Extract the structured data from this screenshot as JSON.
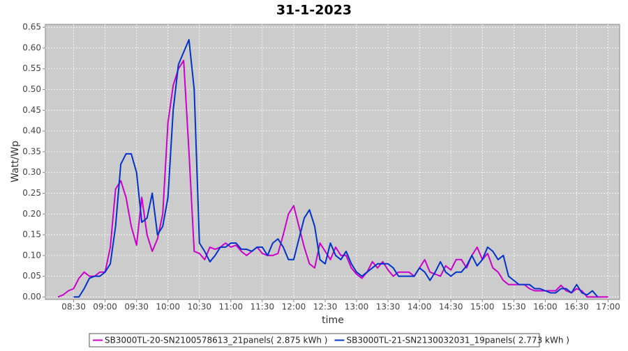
{
  "chart_data": {
    "type": "line",
    "title": "31-1-2023",
    "x_label": "time",
    "y_label": "Watt/Wp",
    "x": [
      495,
      500,
      505,
      510,
      515,
      520,
      525,
      530,
      535,
      540,
      545,
      550,
      555,
      560,
      565,
      570,
      575,
      580,
      585,
      590,
      595,
      600,
      605,
      610,
      615,
      620,
      625,
      630,
      635,
      640,
      645,
      650,
      655,
      660,
      665,
      670,
      675,
      680,
      685,
      690,
      695,
      700,
      705,
      710,
      715,
      720,
      725,
      730,
      735,
      740,
      745,
      750,
      755,
      760,
      765,
      770,
      775,
      780,
      785,
      790,
      795,
      800,
      805,
      810,
      815,
      820,
      825,
      830,
      835,
      840,
      845,
      850,
      855,
      860,
      865,
      870,
      875,
      880,
      885,
      890,
      895,
      900,
      905,
      910,
      915,
      920,
      925,
      930,
      935,
      940,
      945,
      950,
      955,
      960,
      965,
      970,
      975,
      980,
      985,
      990,
      995,
      1000,
      1005,
      1010,
      1015,
      1020
    ],
    "series": [
      {
        "name": "SB3000TL-20-SN2100578613_21panels( 2.875 kWh )",
        "color": "#cc00cc",
        "values": [
          0,
          0.005,
          0.015,
          0.02,
          0.045,
          0.06,
          0.05,
          0.05,
          0.06,
          0.06,
          0.12,
          0.26,
          0.28,
          0.24,
          0.17,
          0.125,
          0.24,
          0.15,
          0.11,
          0.14,
          0.2,
          0.42,
          0.51,
          0.55,
          0.57,
          0.35,
          0.11,
          0.105,
          0.09,
          0.12,
          0.115,
          0.12,
          0.13,
          0.12,
          0.125,
          0.11,
          0.1,
          0.11,
          0.12,
          0.105,
          0.1,
          0.1,
          0.105,
          0.15,
          0.2,
          0.22,
          0.17,
          0.12,
          0.08,
          0.07,
          0.13,
          0.11,
          0.09,
          0.12,
          0.1,
          0.1,
          0.07,
          0.055,
          0.045,
          0.06,
          0.085,
          0.07,
          0.085,
          0.065,
          0.05,
          0.06,
          0.06,
          0.06,
          0.05,
          0.07,
          0.09,
          0.06,
          0.055,
          0.05,
          0.075,
          0.065,
          0.09,
          0.09,
          0.07,
          0.1,
          0.12,
          0.09,
          0.105,
          0.07,
          0.06,
          0.04,
          0.03,
          0.03,
          0.03,
          0.03,
          0.02,
          0.015,
          0.015,
          0.015,
          0.015,
          0.015,
          0.028,
          0.015,
          0.01,
          0.02,
          0.015,
          0,
          0,
          0,
          0,
          0
        ]
      },
      {
        "name": "SB3000TL-21-SN2130032031_19panels( 2.773 kWh )",
        "color": "#0033cc",
        "values": [
          null,
          null,
          null,
          0,
          0,
          0.02,
          0.045,
          0.05,
          0.05,
          0.06,
          0.08,
          0.17,
          0.32,
          0.345,
          0.345,
          0.3,
          0.18,
          0.19,
          0.25,
          0.15,
          0.17,
          0.24,
          0.45,
          0.56,
          0.59,
          0.62,
          0.5,
          0.13,
          0.11,
          0.085,
          0.1,
          0.12,
          0.12,
          0.13,
          0.13,
          0.115,
          0.115,
          0.11,
          0.12,
          0.12,
          0.1,
          0.13,
          0.14,
          0.12,
          0.09,
          0.09,
          0.14,
          0.19,
          0.21,
          0.17,
          0.09,
          0.08,
          0.13,
          0.1,
          0.09,
          0.11,
          0.08,
          0.06,
          0.05,
          0.06,
          0.07,
          0.08,
          0.08,
          0.08,
          0.07,
          0.05,
          0.05,
          0.05,
          0.05,
          0.07,
          0.06,
          0.04,
          0.06,
          0.085,
          0.06,
          0.05,
          0.06,
          0.06,
          0.075,
          0.1,
          0.075,
          0.09,
          0.12,
          0.11,
          0.09,
          0.1,
          0.05,
          0.04,
          0.03,
          0.03,
          0.03,
          0.02,
          0.02,
          0.015,
          0.01,
          0.01,
          0.02,
          0.02,
          0.01,
          0.03,
          0.01,
          0.005,
          0.015,
          0,
          null,
          null
        ]
      }
    ],
    "xlim": [
      483,
      1031
    ],
    "xticks": [
      {
        "value": 510,
        "label": "08:30"
      },
      {
        "value": 540,
        "label": "09:00"
      },
      {
        "value": 570,
        "label": "09:30"
      },
      {
        "value": 600,
        "label": "10:00"
      },
      {
        "value": 630,
        "label": "10:30"
      },
      {
        "value": 660,
        "label": "11:00"
      },
      {
        "value": 690,
        "label": "11:30"
      },
      {
        "value": 720,
        "label": "12:00"
      },
      {
        "value": 750,
        "label": "12:30"
      },
      {
        "value": 780,
        "label": "13:00"
      },
      {
        "value": 810,
        "label": "13:30"
      },
      {
        "value": 840,
        "label": "14:00"
      },
      {
        "value": 870,
        "label": "14:30"
      },
      {
        "value": 900,
        "label": "15:00"
      },
      {
        "value": 930,
        "label": "15:30"
      },
      {
        "value": 960,
        "label": "16:00"
      },
      {
        "value": 990,
        "label": "16:30"
      },
      {
        "value": 1020,
        "label": "17:00"
      }
    ],
    "ylim": [
      -0.006,
      0.657
    ],
    "yticks": [
      {
        "value": 0,
        "label": "0.00"
      },
      0.05,
      {
        "value": 0.1,
        "label": "0.10"
      },
      0.15,
      {
        "value": 0.2,
        "label": "0.20"
      },
      0.25,
      {
        "value": 0.3,
        "label": "0.30"
      },
      0.35,
      {
        "value": 0.4,
        "label": "0.40"
      },
      0.45,
      {
        "value": 0.5,
        "label": "0.50"
      },
      0.55,
      {
        "value": 0.6,
        "label": "0.60"
      },
      0.65
    ],
    "grid": true
  }
}
